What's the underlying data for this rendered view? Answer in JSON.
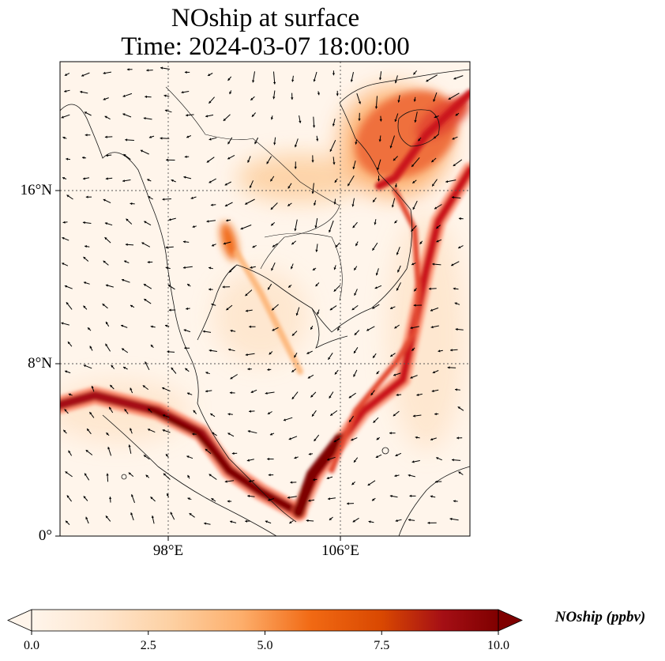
{
  "title": {
    "line1": "NOship at surface",
    "line2": "Time: 2024-03-07 18:00:00"
  },
  "map": {
    "extent": {
      "lon_min": 92,
      "lon_max": 111,
      "lat_min": 0,
      "lat_max": 22
    },
    "lat_ticks": [
      {
        "value": 16,
        "label": "16°N"
      },
      {
        "value": 8,
        "label": "8°N"
      },
      {
        "value": 0,
        "label": "0°"
      }
    ],
    "lon_ticks": [
      {
        "value": 98,
        "label": "98°E"
      },
      {
        "value": 106,
        "label": "106°E"
      }
    ],
    "gridlines": true,
    "wind_vectors": true
  },
  "colorbar": {
    "label": "NOship (ppbv)",
    "ticks": [
      "0.0",
      "2.5",
      "5.0",
      "7.5",
      "10.0"
    ],
    "min": 0,
    "max": 10,
    "extend": "both",
    "colormap": [
      "#fff5eb",
      "#fee6ce",
      "#fdd0a2",
      "#fdae6b",
      "#fd8d3c",
      "#f16913",
      "#d94801",
      "#a63603",
      "#7f2704"
    ]
  },
  "colors": {
    "low": "#fff5eb",
    "mid": "#fdae6b",
    "high": "#d94801",
    "max": "#7f0000"
  }
}
